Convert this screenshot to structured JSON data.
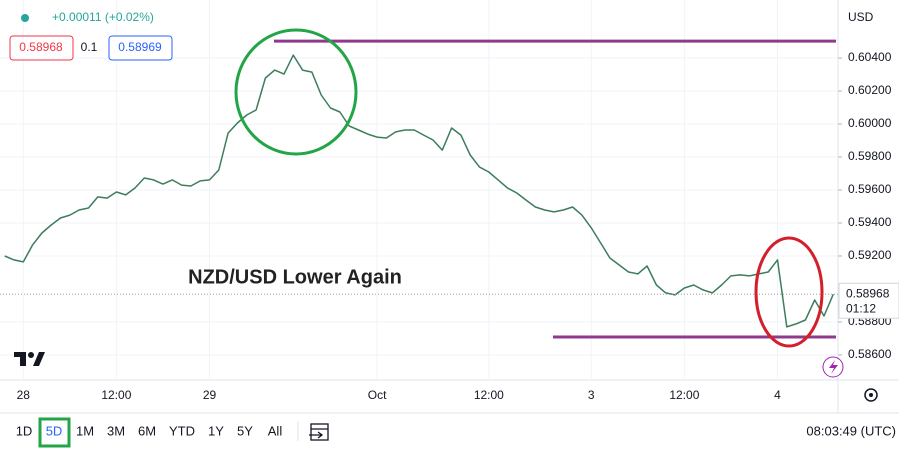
{
  "header": {
    "change": "+0.00011 (+0.02%)",
    "sell": "0.58968",
    "spread": "0.1",
    "buy": "0.58969",
    "currency": "USD"
  },
  "chart_data": {
    "type": "line",
    "annotation": "NZD/USD Lower Again",
    "color": "#3d7d5c",
    "level_color": "#8e3a8e",
    "categories": [
      null,
      null,
      "28",
      null,
      null,
      null,
      null,
      null,
      null,
      null,
      null,
      null,
      "12:00",
      null,
      null,
      null,
      null,
      null,
      null,
      null,
      null,
      null,
      "29",
      null,
      null,
      null,
      null,
      null,
      null,
      null,
      null,
      null,
      null,
      null,
      null,
      null,
      null,
      null,
      null,
      null,
      "Oct",
      null,
      null,
      null,
      null,
      null,
      null,
      null,
      null,
      null,
      null,
      null,
      "12:00",
      null,
      null,
      null,
      null,
      null,
      null,
      null,
      null,
      null,
      null,
      "3",
      null,
      null,
      null,
      null,
      null,
      null,
      null,
      null,
      null,
      "12:00",
      null,
      null,
      null,
      null,
      null,
      null,
      null,
      null,
      null,
      "4",
      null,
      null,
      null,
      null,
      null,
      null
    ],
    "values": [
      0.592,
      0.59176,
      0.59164,
      0.59267,
      0.59339,
      0.59388,
      0.5943,
      0.59448,
      0.59479,
      0.59491,
      0.59558,
      0.59551,
      0.59588,
      0.5957,
      0.59612,
      0.59673,
      0.59661,
      0.59636,
      0.59661,
      0.5963,
      0.59624,
      0.59655,
      0.59661,
      0.59721,
      0.59945,
      0.60006,
      0.60055,
      0.60085,
      0.60279,
      0.60327,
      0.60303,
      0.60418,
      0.60327,
      0.60315,
      0.60176,
      0.60097,
      0.60073,
      0.59988,
      0.59964,
      0.59939,
      0.59921,
      0.59915,
      0.59952,
      0.59964,
      0.59964,
      0.59933,
      0.59903,
      0.59842,
      0.59976,
      0.59933,
      0.59812,
      0.59739,
      0.59709,
      0.59661,
      0.59612,
      0.59582,
      0.59539,
      0.59497,
      0.59479,
      0.59467,
      0.59479,
      0.59497,
      0.59448,
      0.5937,
      0.59279,
      0.59188,
      0.59145,
      0.59103,
      0.59091,
      0.59139,
      0.59024,
      0.58976,
      0.58964,
      0.59006,
      0.59024,
      0.58994,
      0.58976,
      0.59024,
      0.59079,
      0.59085,
      0.59079,
      0.59091,
      0.59103,
      0.59176,
      0.5877,
      0.58788,
      0.58812,
      0.58933,
      0.58836,
      0.58968
    ],
    "levels": [
      0.60503,
      0.58709
    ],
    "ylim": [
      0.58448,
      0.60752
    ],
    "yticks": [
      {
        "value": 0.586,
        "label": "0.58600"
      },
      {
        "value": 0.588,
        "label": "0.58800"
      },
      {
        "value": 0.592,
        "label": "0.59200"
      },
      {
        "value": 0.594,
        "label": "0.59400"
      },
      {
        "value": 0.596,
        "label": "0.59600"
      },
      {
        "value": 0.598,
        "label": "0.59800"
      },
      {
        "value": 0.6,
        "label": "0.60000"
      },
      {
        "value": 0.602,
        "label": "0.60200"
      },
      {
        "value": 0.604,
        "label": "0.60400"
      }
    ],
    "countdown": "01:12"
  },
  "toolbar": {
    "ranges": [
      "1D",
      "5D",
      "1M",
      "3M",
      "6M",
      "YTD",
      "1Y",
      "5Y",
      "All"
    ],
    "clock": "08:03:49 (UTC)"
  }
}
